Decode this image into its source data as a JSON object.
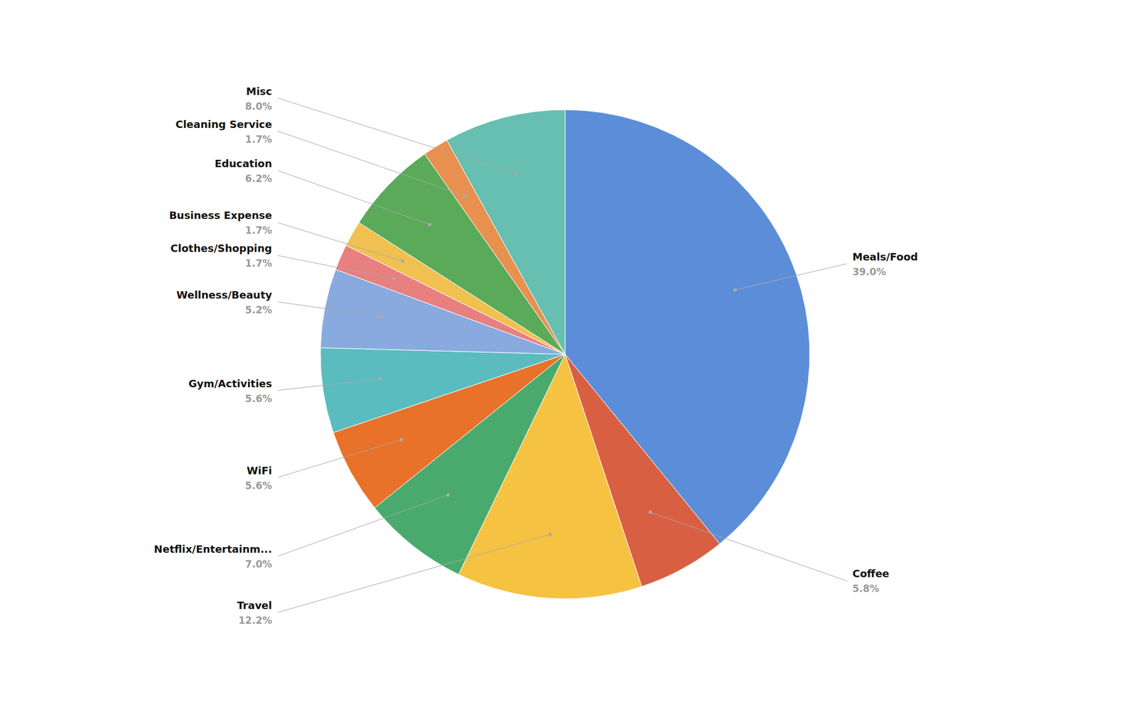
{
  "chart_data": {
    "type": "pie",
    "categories": [
      "Meals/Food",
      "Coffee",
      "Travel",
      "Netflix/Entertainm...",
      "WiFi",
      "Gym/Activities",
      "Wellness/Beauty",
      "Clothes/Shopping",
      "Business Expense",
      "Education",
      "Cleaning Service",
      "Misc"
    ],
    "values": [
      39.0,
      5.8,
      12.2,
      7.0,
      5.6,
      5.6,
      5.2,
      1.7,
      1.7,
      6.2,
      1.7,
      8.0
    ],
    "value_labels": [
      "39.0%",
      "5.8%",
      "12.2%",
      "7.0%",
      "5.6%",
      "5.6%",
      "5.2%",
      "1.7%",
      "1.7%",
      "6.2%",
      "1.7%",
      "8.0%"
    ],
    "colors": [
      "#5b8dd9",
      "#d95f43",
      "#f5c242",
      "#4aaa6e",
      "#e8722a",
      "#5bbcbf",
      "#88aade",
      "#e88080",
      "#f0c050",
      "#5aaa5a",
      "#e89050",
      "#66bfb0"
    ],
    "data_labels": true
  }
}
